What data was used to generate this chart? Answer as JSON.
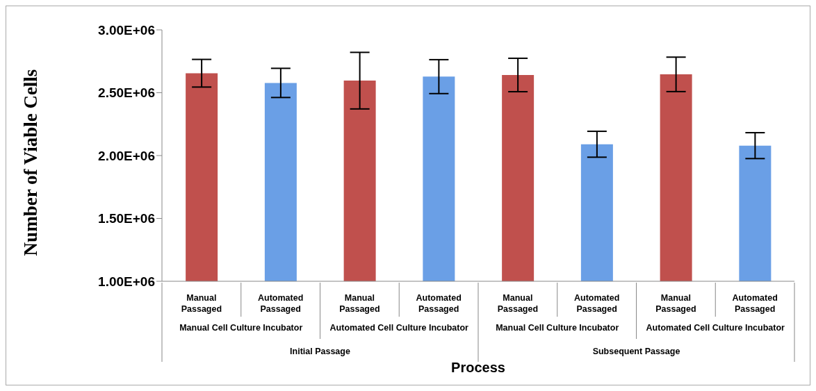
{
  "chart_data": {
    "type": "bar",
    "xlabel": "Process",
    "ylabel": "Number of Viable Cells",
    "categories": [
      "Manual Passaged",
      "Automated Passaged",
      "Manual Passaged",
      "Automated Passaged",
      "Manual Passaged",
      "Automated Passaged",
      "Manual Passaged",
      "Automated Passaged"
    ],
    "values": [
      2655000,
      2578000,
      2596000,
      2628000,
      2641000,
      2090000,
      2646000,
      2079000
    ],
    "errors": [
      110000,
      116000,
      225000,
      135000,
      133000,
      103000,
      137000,
      103000
    ],
    "colors": [
      "#c0504d",
      "#6a9fe6",
      "#c0504d",
      "#6a9fe6",
      "#c0504d",
      "#6a9fe6",
      "#c0504d",
      "#6a9fe6"
    ],
    "ylim": [
      1000000,
      3000000
    ],
    "yticks": [
      {
        "value": 1000000,
        "label": "1.00E+06"
      },
      {
        "value": 1500000,
        "label": "1.50E+06"
      },
      {
        "value": 2000000,
        "label": "2.00E+06"
      },
      {
        "value": 2500000,
        "label": "2.50E+06"
      },
      {
        "value": 3000000,
        "label": "3.00E+06"
      }
    ],
    "annotations": [
      "Manual Cell Culture Incubator",
      "Automated Cell Culture Incubator",
      "Manual Cell Culture Incubator",
      "Automated Cell Culture Incubator",
      "Initial Passage",
      "Subsequent Passage"
    ],
    "grid": false,
    "legend": false
  }
}
